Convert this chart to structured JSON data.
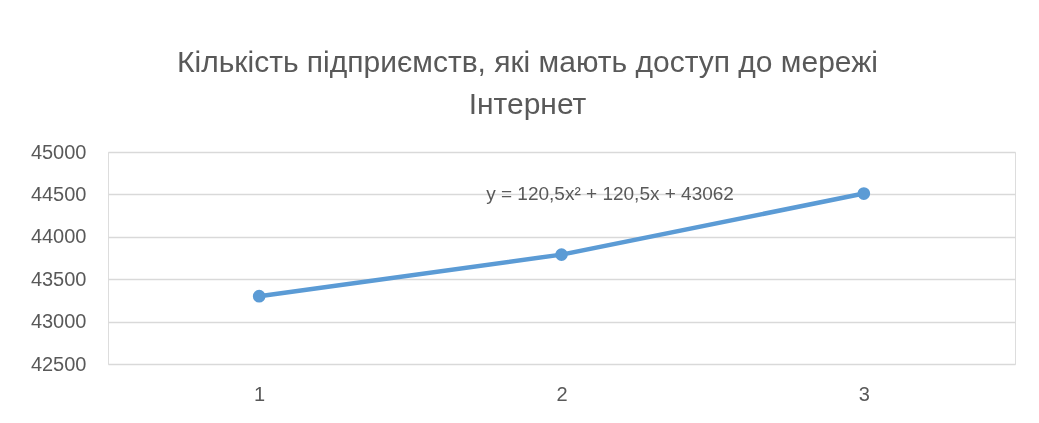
{
  "chart_data": {
    "type": "line",
    "title": "Кількість підприємств, які мають доступ до мережі Інтернет",
    "x": [
      1,
      2,
      3
    ],
    "xlim": [
      0.5,
      3.5
    ],
    "xticks": [
      1,
      2,
      3
    ],
    "ylim": [
      42500,
      45000
    ],
    "yticks": [
      42500,
      43000,
      43500,
      44000,
      44500,
      45000
    ],
    "series": [
      {
        "color": "#5b9bd5",
        "values": [
          43300,
          43790,
          44510
        ]
      }
    ],
    "marker": "circle",
    "line_style": "solid",
    "grid": "y",
    "annotations": [
      "y = 120,5x² + 120,5x + 43062"
    ]
  }
}
